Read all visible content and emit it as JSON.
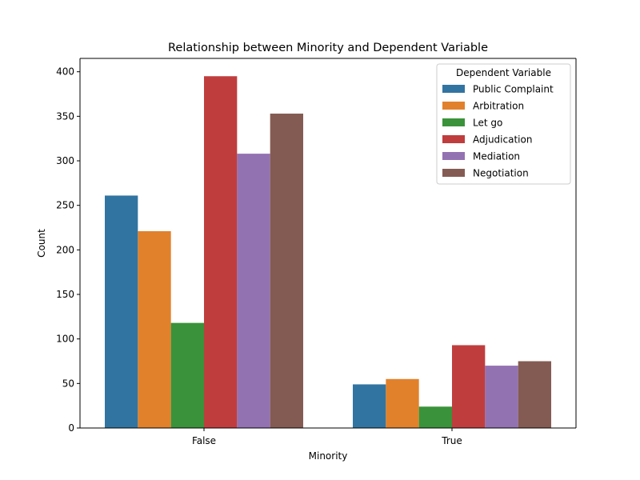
{
  "chart_data": {
    "type": "bar",
    "title": "Relationship between Minority and Dependent Variable",
    "xlabel": "Minority",
    "ylabel": "Count",
    "categories": [
      "False",
      "True"
    ],
    "ylim": [
      0,
      415
    ],
    "yticks": [
      0,
      50,
      100,
      150,
      200,
      250,
      300,
      350,
      400
    ],
    "grid": false,
    "legend": {
      "title": "Dependent Variable",
      "position": "top-right"
    },
    "series": [
      {
        "name": "Public Complaint",
        "color": "#3274a1",
        "values": [
          261,
          49
        ]
      },
      {
        "name": "Arbitration",
        "color": "#e1812c",
        "values": [
          221,
          55
        ]
      },
      {
        "name": "Let go",
        "color": "#3a923a",
        "values": [
          118,
          24
        ]
      },
      {
        "name": "Adjudication",
        "color": "#c03d3e",
        "values": [
          395,
          93
        ]
      },
      {
        "name": "Mediation",
        "color": "#9372b2",
        "values": [
          308,
          70
        ]
      },
      {
        "name": "Negotiation",
        "color": "#845b53",
        "values": [
          353,
          75
        ]
      }
    ]
  }
}
